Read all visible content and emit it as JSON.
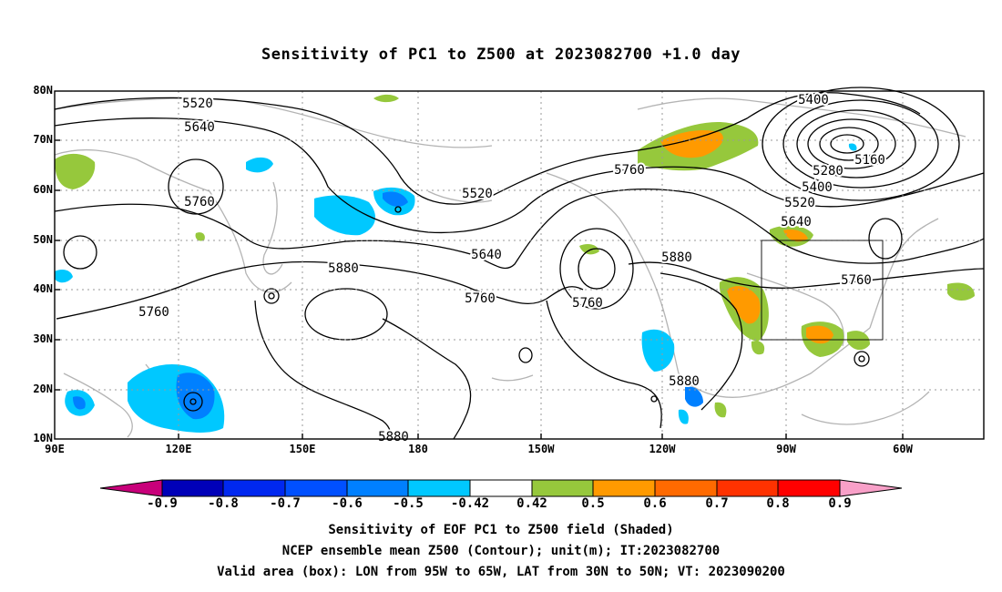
{
  "title": "Sensitivity of PC1 to Z500 at 2023082700 +1.0 day",
  "lat_labels": [
    "80N",
    "70N",
    "60N",
    "50N",
    "40N",
    "30N",
    "20N",
    "10N"
  ],
  "lon_labels": [
    "90E",
    "120E",
    "150E",
    "180",
    "150W",
    "120W",
    "90W",
    "60W"
  ],
  "contour_labels": [
    "5520",
    "5640",
    "5760",
    "5760",
    "5520",
    "5640",
    "5760",
    "5880",
    "5880",
    "5760",
    "5760",
    "5880",
    "5880",
    "5400",
    "5160",
    "5280",
    "5400",
    "5520",
    "5640",
    "5760"
  ],
  "colorbar": {
    "labels": [
      "-0.9",
      "-0.8",
      "-0.7",
      "-0.6",
      "-0.5",
      "-0.42",
      "0.42",
      "0.5",
      "0.6",
      "0.7",
      "0.8",
      "0.9"
    ],
    "colors": [
      "#c8007a",
      "#0000b8",
      "#0028f0",
      "#0050ff",
      "#0080ff",
      "#00c8ff",
      "#ffffff",
      "#96c83c",
      "#ff9a00",
      "#ff6a00",
      "#ff3200",
      "#ff0000",
      "#f8a0c8"
    ]
  },
  "captions": [
    "Sensitivity of EOF PC1 to Z500 field (Shaded)",
    "NCEP ensemble mean Z500 (Contour); unit(m); IT:2023082700",
    "Valid area (box): LON from 95W to 65W, LAT from 30N to 50N; VT: 2023090200"
  ],
  "valid_box": {
    "lon_from": "95W",
    "lon_to": "65W",
    "lat_from": "30N",
    "lat_to": "50N"
  }
}
